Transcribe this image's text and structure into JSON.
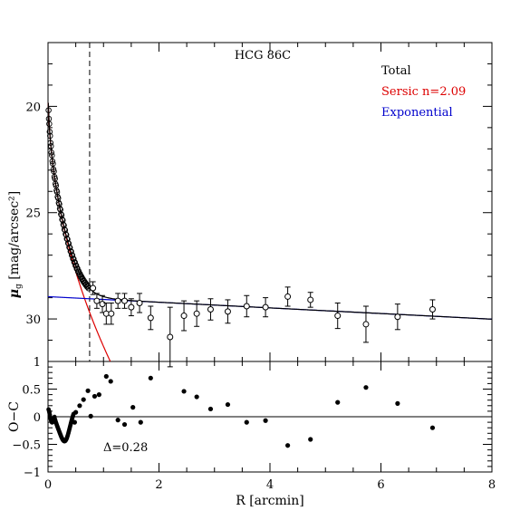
{
  "chart_data": [
    {
      "panel": "profile",
      "type": "scatter",
      "title": "HCG 86C",
      "ylabel_main": "μ",
      "ylabel_sub": "g",
      "ylabel_unit": " [mag/arcsec²]",
      "xlim": [
        0,
        8
      ],
      "ylim": [
        32,
        17
      ],
      "yticks": [
        20,
        25,
        30
      ],
      "vline_x": 0.75,
      "legend": [
        {
          "label": "Total",
          "color": "#000000"
        },
        {
          "label": "Sersic n=2.09",
          "color": "#dd0000"
        },
        {
          "label": "Exponential",
          "color": "#0000cc"
        }
      ],
      "legend_position": "top-right",
      "points": [
        {
          "x": 0.81,
          "y": 28.55,
          "err": 0.3
        },
        {
          "x": 0.88,
          "y": 29.15,
          "err": 0.35
        },
        {
          "x": 0.98,
          "y": 29.3,
          "err": 0.4
        },
        {
          "x": 1.05,
          "y": 29.75,
          "err": 0.5
        },
        {
          "x": 1.14,
          "y": 29.75,
          "err": 0.5
        },
        {
          "x": 1.26,
          "y": 29.15,
          "err": 0.35
        },
        {
          "x": 1.38,
          "y": 29.15,
          "err": 0.35
        },
        {
          "x": 1.5,
          "y": 29.45,
          "err": 0.4
        },
        {
          "x": 1.65,
          "y": 29.25,
          "err": 0.45
        },
        {
          "x": 1.85,
          "y": 29.95,
          "err": 0.55
        },
        {
          "x": 2.2,
          "y": 30.85,
          "err": 1.4
        },
        {
          "x": 2.45,
          "y": 29.85,
          "err": 0.7
        },
        {
          "x": 2.68,
          "y": 29.75,
          "err": 0.6
        },
        {
          "x": 2.93,
          "y": 29.55,
          "err": 0.5
        },
        {
          "x": 3.24,
          "y": 29.65,
          "err": 0.55
        },
        {
          "x": 3.58,
          "y": 29.4,
          "err": 0.5
        },
        {
          "x": 3.92,
          "y": 29.45,
          "err": 0.45
        },
        {
          "x": 4.32,
          "y": 28.95,
          "err": 0.45
        },
        {
          "x": 4.73,
          "y": 29.1,
          "err": 0.35
        },
        {
          "x": 5.22,
          "y": 29.85,
          "err": 0.6
        },
        {
          "x": 5.73,
          "y": 30.25,
          "err": 0.85
        },
        {
          "x": 6.3,
          "y": 29.9,
          "err": 0.6
        },
        {
          "x": 6.93,
          "y": 29.55,
          "err": 0.45
        }
      ],
      "inner_points_note": "dense inner profile points from 0 to 0.75 arcmin following the total model"
    },
    {
      "panel": "residuals",
      "type": "scatter",
      "ylabel": "O−C",
      "xlabel": "R [arcmin]",
      "xlim": [
        0,
        8
      ],
      "ylim": [
        -1,
        1
      ],
      "yticks": [
        -1,
        -0.5,
        0,
        0.5,
        1
      ],
      "ytick_labels": [
        "−1",
        "−0.5",
        "0",
        "0.5",
        "1"
      ],
      "xticks": [
        0,
        2,
        4,
        6,
        8
      ],
      "annotation": "Δ=0.28",
      "points": [
        {
          "x": 0.5,
          "y": 0.08
        },
        {
          "x": 0.57,
          "y": 0.2
        },
        {
          "x": 0.64,
          "y": 0.31
        },
        {
          "x": 0.72,
          "y": 0.47
        },
        {
          "x": 0.84,
          "y": 0.37
        },
        {
          "x": 0.92,
          "y": 0.4
        },
        {
          "x": 1.05,
          "y": 0.73
        },
        {
          "x": 1.13,
          "y": 0.64
        },
        {
          "x": 0.77,
          "y": 0.01
        },
        {
          "x": 0.48,
          "y": -0.1
        },
        {
          "x": 1.26,
          "y": -0.06
        },
        {
          "x": 1.38,
          "y": -0.14
        },
        {
          "x": 1.53,
          "y": 0.17
        },
        {
          "x": 1.67,
          "y": -0.1
        },
        {
          "x": 1.85,
          "y": 0.7
        },
        {
          "x": 2.45,
          "y": 0.46
        },
        {
          "x": 2.68,
          "y": 0.36
        },
        {
          "x": 2.93,
          "y": 0.14
        },
        {
          "x": 3.24,
          "y": 0.22
        },
        {
          "x": 3.58,
          "y": -0.1
        },
        {
          "x": 3.92,
          "y": -0.07
        },
        {
          "x": 4.32,
          "y": -0.52
        },
        {
          "x": 4.73,
          "y": -0.41
        },
        {
          "x": 5.22,
          "y": 0.26
        },
        {
          "x": 5.73,
          "y": 0.53
        },
        {
          "x": 6.3,
          "y": 0.24
        },
        {
          "x": 6.93,
          "y": -0.2
        }
      ]
    }
  ]
}
